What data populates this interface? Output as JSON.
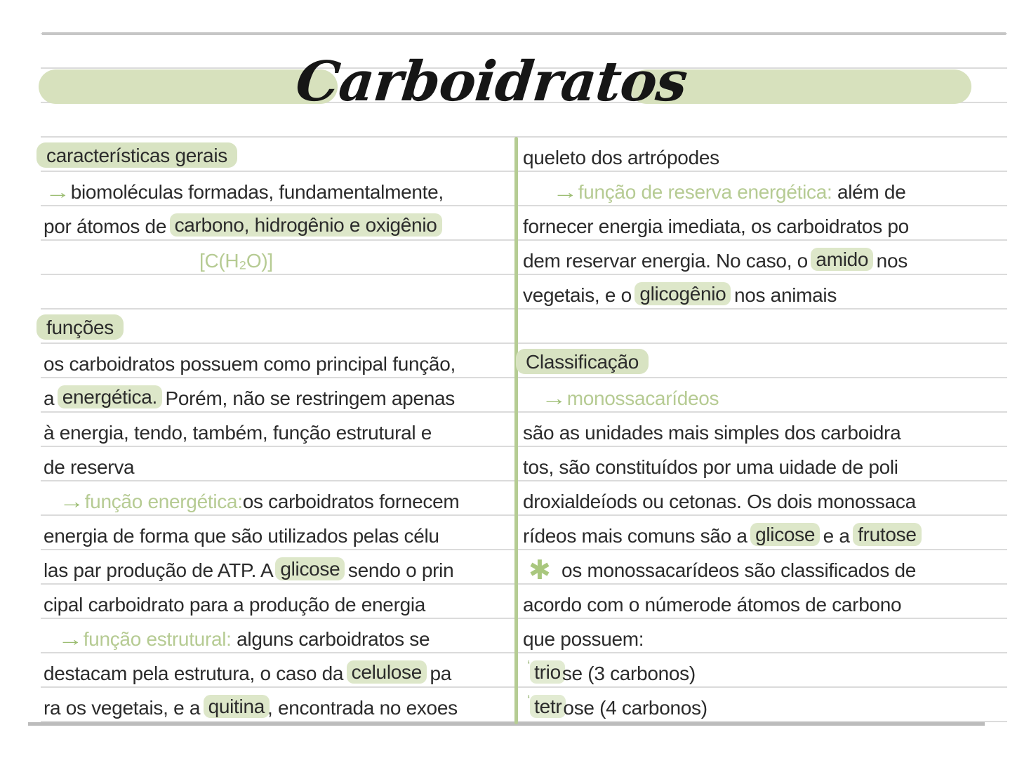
{
  "title": {
    "text": "Carboidratos"
  },
  "colors": {
    "highlight": "#dde7c9",
    "highlight_heading": "#d8e3c2",
    "highlight_soft": "#e2ebd2",
    "green_text": "#b6cb93",
    "arrow_green": "#9cbd72",
    "divider_green": "#b5cc93",
    "pill_green": "#d7e1bd",
    "rule_gray": "#c6c6c6",
    "ink": "#2b2b2b"
  },
  "left_column": {
    "rows": [
      {
        "indent": 0,
        "segments": [
          {
            "text": "características gerais",
            "style": "hl-head"
          }
        ]
      },
      {
        "indent": 2,
        "segments": [
          {
            "text": "→",
            "style": "arrow"
          },
          {
            "text": "biomoléculas formadas, fundamentalmente,",
            "style": "plain"
          }
        ]
      },
      {
        "indent": 0,
        "segments": [
          {
            "text": "por átomos de ",
            "style": "plain"
          },
          {
            "text": "carbono, hidrogênio e oxigênio",
            "style": "hl"
          }
        ]
      },
      {
        "indent": 222,
        "segments": [
          {
            "text": "[C(H₂O)]",
            "style": "green"
          }
        ]
      },
      {
        "indent": 0,
        "segments": []
      },
      {
        "indent": 0,
        "segments": [
          {
            "text": "funções",
            "style": "hl-head"
          }
        ]
      },
      {
        "indent": 0,
        "segments": [
          {
            "text": "os carboidratos possuem como principal função,",
            "style": "plain"
          }
        ]
      },
      {
        "indent": 0,
        "segments": [
          {
            "text": "a ",
            "style": "plain"
          },
          {
            "text": "energética.",
            "style": "hl"
          },
          {
            "text": " Porém, não se restringem apenas",
            "style": "plain"
          }
        ]
      },
      {
        "indent": 0,
        "segments": [
          {
            "text": "à energia, tendo, também, função estrutural e",
            "style": "plain"
          }
        ]
      },
      {
        "indent": 0,
        "segments": [
          {
            "text": "de reserva",
            "style": "plain"
          }
        ]
      },
      {
        "indent": 22,
        "segments": [
          {
            "text": "→",
            "style": "arrow"
          },
          {
            "text": "função energética:",
            "style": "green"
          },
          {
            "text": "os carboidratos fornecem",
            "style": "plain"
          }
        ]
      },
      {
        "indent": 0,
        "segments": [
          {
            "text": "energia de forma que são utilizados pelas célu",
            "style": "plain"
          }
        ]
      },
      {
        "indent": 0,
        "segments": [
          {
            "text": "las par produção de ATP. A ",
            "style": "plain"
          },
          {
            "text": "glicose",
            "style": "hl"
          },
          {
            "text": " sendo o prin",
            "style": "plain"
          }
        ]
      },
      {
        "indent": 0,
        "segments": [
          {
            "text": "cipal carboidrato para a produção de energia",
            "style": "plain"
          }
        ]
      },
      {
        "indent": 20,
        "segments": [
          {
            "text": "→",
            "style": "arrow"
          },
          {
            "text": "função estrutural:",
            "style": "green"
          },
          {
            "text": " alguns carboidratos se",
            "style": "plain"
          }
        ]
      },
      {
        "indent": 0,
        "segments": [
          {
            "text": "destacam pela estrutura, o caso da ",
            "style": "plain"
          },
          {
            "text": "celulose",
            "style": "hl"
          },
          {
            "text": " pa",
            "style": "plain"
          }
        ]
      },
      {
        "indent": 0,
        "segments": [
          {
            "text": "ra os vegetais, e a ",
            "style": "plain"
          },
          {
            "text": "quitina",
            "style": "hl"
          },
          {
            "text": ", encontrada no exoes",
            "style": "plain"
          }
        ]
      }
    ]
  },
  "right_column": {
    "rows": [
      {
        "indent": 0,
        "segments": [
          {
            "text": "queleto dos artrópodes",
            "style": "plain"
          }
        ]
      },
      {
        "indent": 42,
        "segments": [
          {
            "text": "→",
            "style": "arrow"
          },
          {
            "text": "função de reserva energética:",
            "style": "green"
          },
          {
            "text": " além de",
            "style": "plain"
          }
        ]
      },
      {
        "indent": 0,
        "segments": [
          {
            "text": "fornecer energia imediata, os carboidratos po",
            "style": "plain"
          }
        ]
      },
      {
        "indent": 0,
        "segments": [
          {
            "text": "dem reservar energia. No caso, o ",
            "style": "plain"
          },
          {
            "text": "amido",
            "style": "hl"
          },
          {
            "text": " nos",
            "style": "plain"
          }
        ]
      },
      {
        "indent": 0,
        "segments": [
          {
            "text": "vegetais, e o ",
            "style": "plain"
          },
          {
            "text": "glicogênio",
            "style": "hl"
          },
          {
            "text": " nos animais",
            "style": "plain"
          }
        ]
      },
      {
        "indent": 0,
        "segments": []
      },
      {
        "indent": 0,
        "segments": [
          {
            "text": "Classificação",
            "style": "hl-head"
          }
        ]
      },
      {
        "indent": 26,
        "segments": [
          {
            "text": "→",
            "style": "arrow"
          },
          {
            "text": "monossacarídeos",
            "style": "green"
          }
        ]
      },
      {
        "indent": 0,
        "segments": [
          {
            "text": "são as unidades mais simples dos carboidra",
            "style": "plain"
          }
        ]
      },
      {
        "indent": 0,
        "segments": [
          {
            "text": "tos, são constituídos por uma uidade de poli",
            "style": "plain"
          }
        ]
      },
      {
        "indent": 0,
        "segments": [
          {
            "text": "droxialdeíods ou cetonas. Os dois monossaca",
            "style": "plain"
          }
        ]
      },
      {
        "indent": 0,
        "segments": [
          {
            "text": "rídeos mais comuns são a ",
            "style": "plain"
          },
          {
            "text": "glicose",
            "style": "hl"
          },
          {
            "text": " e a ",
            "style": "plain"
          },
          {
            "text": "frutose",
            "style": "hl"
          }
        ]
      },
      {
        "indent": 8,
        "segments": [
          {
            "text": "✱",
            "style": "star"
          },
          {
            "text": " os monossacarídeos são classificados de",
            "style": "plain"
          }
        ]
      },
      {
        "indent": 0,
        "segments": [
          {
            "text": "acordo com o númerode átomos de carbono",
            "style": "plain"
          }
        ]
      },
      {
        "indent": 0,
        "segments": [
          {
            "text": "que possuem:",
            "style": "plain"
          }
        ]
      },
      {
        "indent": 6,
        "segments": [
          {
            "text": "ʻ",
            "style": "tick"
          },
          {
            "text": "trio",
            "style": "hl-soft"
          },
          {
            "text": "se (3 carbonos)",
            "style": "plain"
          }
        ]
      },
      {
        "indent": 6,
        "segments": [
          {
            "text": "ʻ",
            "style": "tick"
          },
          {
            "text": "tetr",
            "style": "hl-soft"
          },
          {
            "text": "ose (4 carbonos)",
            "style": "plain"
          }
        ]
      }
    ]
  }
}
